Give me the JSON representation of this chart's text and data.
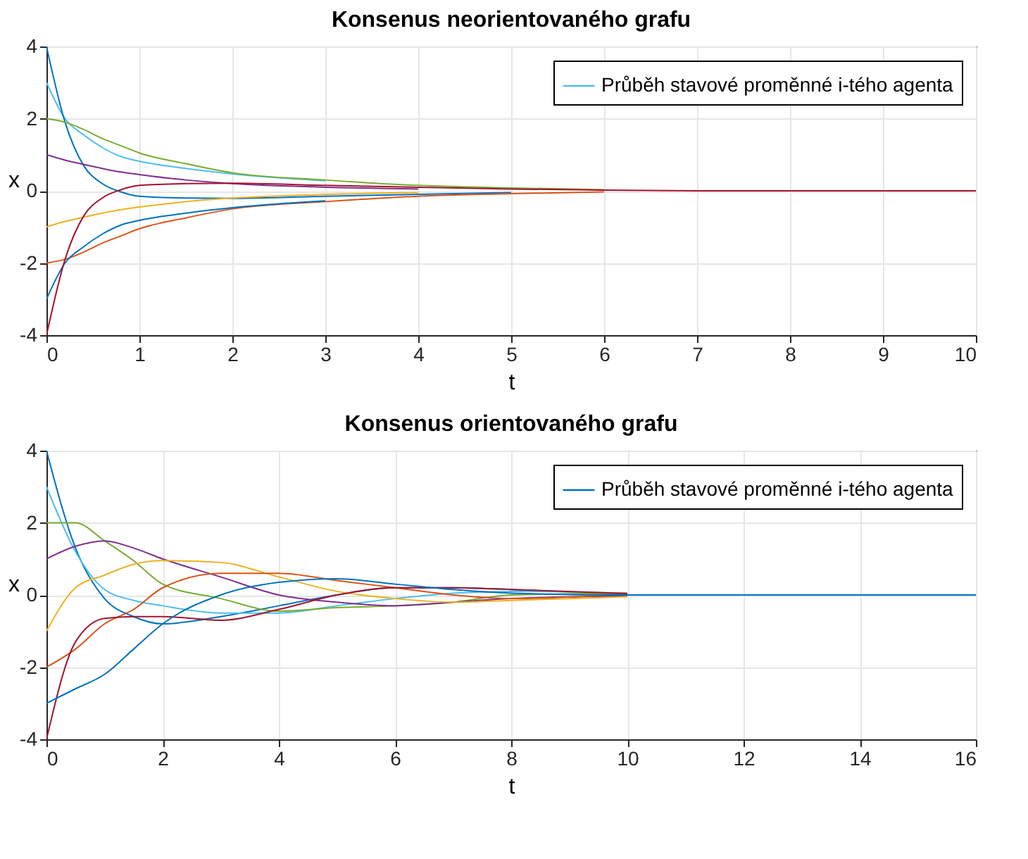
{
  "chart_data": [
    {
      "type": "line",
      "title": "Konsenus neorientovaného grafu",
      "xlabel": "t",
      "ylabel": "x",
      "x": [
        0,
        0.2,
        0.4,
        0.6,
        0.8,
        1,
        1.5,
        2,
        3,
        4,
        5,
        6,
        7,
        8,
        10
      ],
      "xlim": [
        0,
        10
      ],
      "xticks": [
        0,
        1,
        2,
        3,
        4,
        5,
        6,
        7,
        8,
        9,
        10
      ],
      "ylim": [
        -4,
        4
      ],
      "yticks": [
        -4,
        -2,
        0,
        2,
        4
      ],
      "grid": true,
      "legend": "top right",
      "series": [
        {
          "name": "Průběh stavové proměnné i-tého agenta",
          "color": "#4dbeee",
          "values": [
            3,
            2.0,
            1.55,
            1.2,
            0.95,
            0.82,
            0.62,
            0.47,
            0.28,
            null,
            null,
            null,
            null,
            null,
            null
          ]
        },
        {
          "color": "#0072bd",
          "values": [
            4,
            1.9,
            0.7,
            0.2,
            -0.03,
            -0.15,
            -0.2,
            -0.21,
            -0.15,
            -0.1,
            -0.05,
            null,
            null,
            null,
            null
          ]
        },
        {
          "color": "#77ac30",
          "values": [
            2,
            1.9,
            1.7,
            1.45,
            1.25,
            1.05,
            0.75,
            0.5,
            0.3,
            0.15,
            0.08,
            0.03,
            null,
            null,
            null
          ]
        },
        {
          "color": "#7e2f8e",
          "values": [
            1,
            0.85,
            0.73,
            0.62,
            0.52,
            0.45,
            0.3,
            0.2,
            0.1,
            0.05,
            null,
            null,
            null,
            null,
            null
          ]
        },
        {
          "color": "#edb120",
          "values": [
            -1,
            -0.85,
            -0.73,
            -0.62,
            -0.52,
            -0.45,
            -0.3,
            -0.2,
            -0.1,
            -0.05,
            null,
            null,
            null,
            null,
            null
          ]
        },
        {
          "color": "#d95319",
          "values": [
            -2,
            -1.9,
            -1.7,
            -1.45,
            -1.25,
            -1.05,
            -0.75,
            -0.5,
            -0.3,
            -0.15,
            -0.08,
            -0.03,
            null,
            null,
            null
          ]
        },
        {
          "color": "#0072bd",
          "values": [
            -3,
            -2.0,
            -1.55,
            -1.2,
            -0.95,
            -0.82,
            -0.62,
            -0.47,
            -0.28,
            null,
            null,
            null,
            null,
            null,
            null
          ]
        },
        {
          "color": "#a2142f",
          "values": [
            -4,
            -1.9,
            -0.7,
            -0.2,
            0.03,
            0.15,
            0.2,
            0.21,
            0.15,
            0.1,
            0.05,
            0.02,
            0,
            0,
            0
          ]
        }
      ]
    },
    {
      "type": "line",
      "title": "Konsenus orientovaného grafu",
      "xlabel": "t",
      "ylabel": "x",
      "x": [
        0,
        0.5,
        1,
        1.5,
        2,
        3,
        4,
        5,
        6,
        7,
        8,
        10,
        12,
        14,
        16
      ],
      "xlim": [
        0,
        16
      ],
      "xticks": [
        0,
        2,
        4,
        6,
        8,
        10,
        12,
        14,
        16
      ],
      "ylim": [
        -4,
        4
      ],
      "yticks": [
        -4,
        -2,
        0,
        2,
        4
      ],
      "grid": true,
      "legend": "top right",
      "series": [
        {
          "name": "Průběh stavové proměnné i-tého agenta",
          "color": "#0072bd",
          "values": [
            4,
            1.3,
            -0.1,
            -0.6,
            -0.8,
            -0.6,
            -0.3,
            0,
            0.2,
            0.2,
            0.15,
            0.02,
            null,
            null,
            null
          ]
        },
        {
          "color": "#4dbeee",
          "values": [
            3,
            1.2,
            0.15,
            -0.15,
            -0.3,
            -0.5,
            -0.5,
            -0.3,
            -0.1,
            0.05,
            0.1,
            0.05,
            null,
            null,
            null
          ]
        },
        {
          "color": "#77ac30",
          "values": [
            2,
            2.0,
            1.5,
            0.95,
            0.3,
            -0.1,
            -0.45,
            -0.35,
            -0.3,
            -0.2,
            0,
            0.05,
            null,
            null,
            null
          ]
        },
        {
          "color": "#7e2f8e",
          "values": [
            1,
            1.35,
            1.5,
            1.3,
            1.0,
            0.5,
            0,
            -0.2,
            -0.3,
            -0.2,
            -0.1,
            -0.03,
            null,
            null,
            null
          ]
        },
        {
          "color": "#edb120",
          "values": [
            -1,
            0.2,
            0.55,
            0.85,
            0.95,
            0.9,
            0.5,
            0.1,
            -0.1,
            -0.2,
            -0.15,
            -0.05,
            null,
            null,
            null
          ]
        },
        {
          "color": "#d95319",
          "values": [
            -2,
            -1.5,
            -0.8,
            -0.4,
            0.2,
            0.6,
            0.6,
            0.4,
            0.2,
            0,
            -0.1,
            0.03,
            null,
            null,
            null
          ]
        },
        {
          "color": "#a2142f",
          "values": [
            -4,
            -1.3,
            -0.65,
            -0.6,
            -0.6,
            -0.7,
            -0.4,
            0,
            0.2,
            0.2,
            0.15,
            0.04,
            null,
            null,
            null
          ]
        },
        {
          "color": "#0072bd",
          "values": [
            -3,
            -2.6,
            -2.2,
            -1.5,
            -0.8,
            0,
            0.35,
            0.45,
            0.3,
            0.15,
            0.05,
            0,
            0,
            0,
            0
          ]
        }
      ]
    }
  ]
}
